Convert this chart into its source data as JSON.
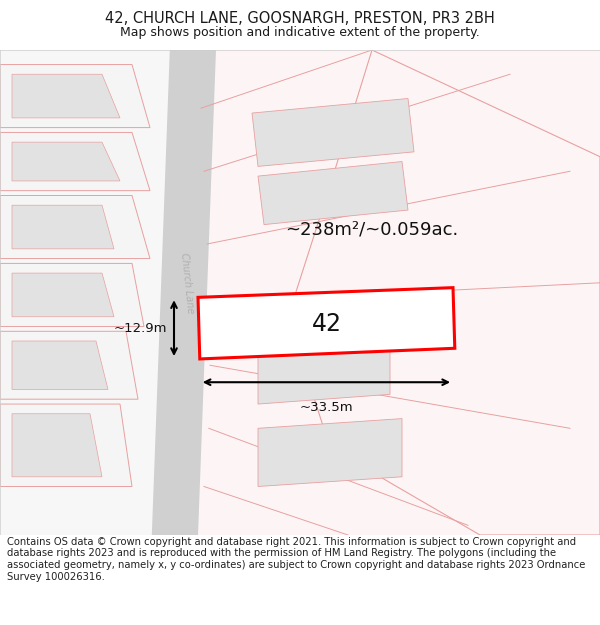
{
  "title_line1": "42, CHURCH LANE, GOOSNARGH, PRESTON, PR3 2BH",
  "title_line2": "Map shows position and indicative extent of the property.",
  "footer_text": "Contains OS data © Crown copyright and database right 2021. This information is subject to Crown copyright and database rights 2023 and is reproduced with the permission of HM Land Registry. The polygons (including the associated geometry, namely x, y co-ordinates) are subject to Crown copyright and database rights 2023 Ordnance Survey 100026316.",
  "bg_color": "#ffffff",
  "map_bg": "#f7f7f7",
  "road_color": "#d0d0d0",
  "plot_outline_color": "#ff0000",
  "neighbor_fill": "#e2e2e2",
  "neighbor_stroke": "#e8a0a0",
  "area_label": "~238m²/~0.059ac.",
  "width_label": "~33.5m",
  "height_label": "~12.9m",
  "number_label": "42",
  "street_label": "Church Lane",
  "title_fontsize": 10.5,
  "subtitle_fontsize": 9,
  "footer_fontsize": 7.2,
  "title_color": "#1a1a1a",
  "map_border_color": "#cccccc"
}
